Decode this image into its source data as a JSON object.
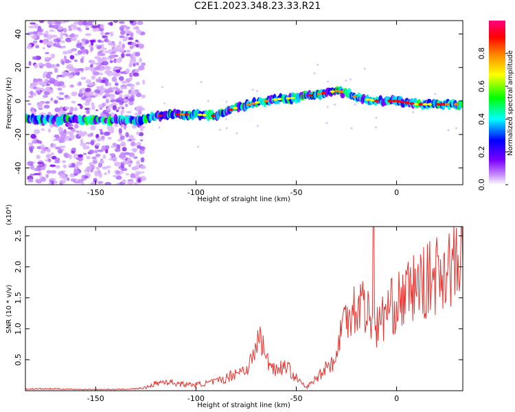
{
  "title": "C2E1.2023.348.23.33.R21",
  "chart_data": [
    {
      "type": "heatmap",
      "xlabel": "Height of straight line (km)",
      "ylabel": "Frequency (Hz)",
      "xlim": [
        -185,
        33
      ],
      "ylim": [
        -50,
        48
      ],
      "xticks": [
        -150,
        -100,
        -50,
        0
      ],
      "yticks": [
        -40,
        -20,
        0,
        20,
        40
      ],
      "colorbar": {
        "label": "Normalized spectral amplitude",
        "range": [
          0,
          1
        ],
        "ticks": [
          0.0,
          0.2,
          0.4,
          0.6,
          0.8
        ]
      },
      "ridge": {
        "x": [
          -185,
          -160,
          -130,
          -120,
          -110,
          -100,
          -90,
          -80,
          -70,
          -60,
          -50,
          -40,
          -30,
          -25,
          -20,
          -10,
          0,
          10,
          20,
          33
        ],
        "frequency": [
          -11,
          -11,
          -12,
          -9,
          -8,
          -8,
          -9,
          -4,
          -1,
          1,
          2,
          4,
          6,
          5,
          2,
          0,
          0,
          -2,
          -2,
          -2
        ]
      }
    },
    {
      "type": "line",
      "xlabel": "Height of straight line (km)",
      "ylabel": "SNR (10 * v/v)",
      "y_multiplier": "(x10⁴)",
      "xlim": [
        -185,
        33
      ],
      "ylim": [
        0,
        2.65
      ],
      "xticks": [
        -150,
        -100,
        -50,
        0
      ],
      "yticks": [
        0.5,
        1.0,
        1.5,
        2.0,
        2.5
      ],
      "series": [
        {
          "color": "#e8332e",
          "x": [
            -185,
            -170,
            -155,
            -140,
            -130,
            -125,
            -120,
            -115,
            -110,
            -105,
            -100,
            -95,
            -90,
            -85,
            -80,
            -75,
            -72,
            -68,
            -65,
            -60,
            -55,
            -50,
            -45,
            -40,
            -35,
            -30,
            -28,
            -25,
            -22,
            -20,
            -18,
            -15,
            -12,
            -11.5,
            -11,
            -10,
            -5,
            0,
            5,
            10,
            15,
            20,
            25,
            33
          ],
          "y": [
            0.03,
            0.03,
            0.02,
            0.02,
            0.03,
            0.05,
            0.12,
            0.15,
            0.12,
            0.1,
            0.1,
            0.12,
            0.15,
            0.2,
            0.3,
            0.35,
            0.5,
            0.9,
            0.5,
            0.35,
            0.4,
            0.2,
            0.05,
            0.2,
            0.4,
            0.5,
            1.0,
            1.2,
            1.4,
            1.25,
            1.5,
            1.3,
            1.1,
            2.65,
            1.3,
            1.0,
            1.3,
            1.4,
            1.55,
            1.7,
            1.75,
            1.9,
            2.0,
            2.05
          ]
        }
      ]
    }
  ]
}
